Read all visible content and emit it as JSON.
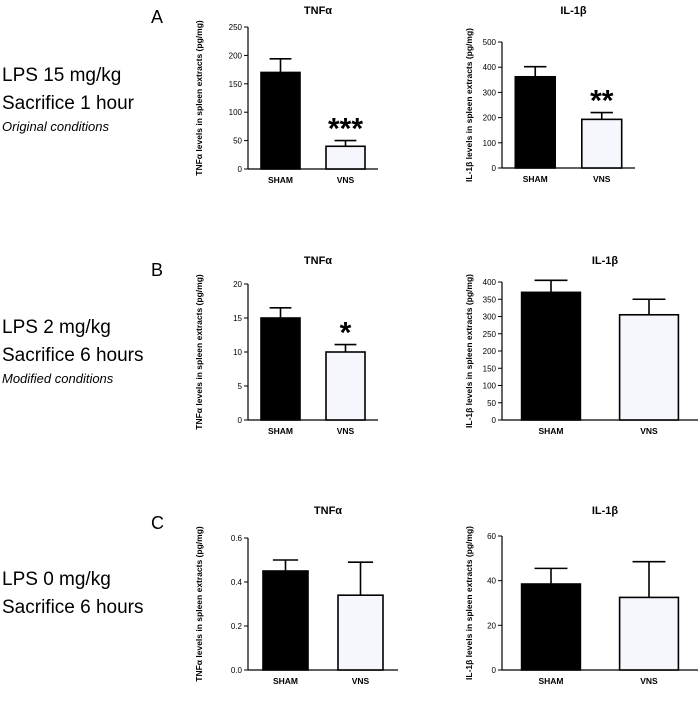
{
  "panels": [
    {
      "letter": "A",
      "condition": {
        "line1": "LPS 15 mg/kg",
        "line2": "Sacrifice 1 hour",
        "note": "Original conditions"
      }
    },
    {
      "letter": "B",
      "condition": {
        "line1": "LPS 2 mg/kg",
        "line2": "Sacrifice 6 hours",
        "note": "Modified conditions"
      }
    },
    {
      "letter": "C",
      "condition": {
        "line1": "LPS 0 mg/kg",
        "line2": "Sacrifice 6 hours",
        "note": ""
      }
    }
  ],
  "chart_data": [
    {
      "type": "bar",
      "title": "TNFα",
      "ylabel": "TNFα levels in spleen extracts (pg/mg)",
      "categories": [
        "SHAM",
        "VNS"
      ],
      "values": [
        170,
        40
      ],
      "errors": [
        24,
        10
      ],
      "ylim": [
        0,
        250
      ],
      "yticks": [
        0,
        50,
        100,
        150,
        200,
        250
      ],
      "colors": [
        "#000000",
        "#f6f6fd"
      ],
      "annotations": [
        "",
        "***"
      ]
    },
    {
      "type": "bar",
      "title": "IL-1β",
      "ylabel": "IL-1β levels in spleen extracts (pg/mg)",
      "categories": [
        "SHAM",
        "VNS"
      ],
      "values": [
        362,
        193
      ],
      "errors": [
        40,
        27
      ],
      "ylim": [
        0,
        500
      ],
      "yticks": [
        0,
        100,
        200,
        300,
        400,
        500
      ],
      "colors": [
        "#000000",
        "#f6f6fd"
      ],
      "annotations": [
        "",
        "**"
      ]
    },
    {
      "type": "bar",
      "title": "TNFα",
      "ylabel": "TNFα levels in spleen extracts (pg/mg)",
      "categories": [
        "SHAM",
        "VNS"
      ],
      "values": [
        15,
        10
      ],
      "errors": [
        1.5,
        1.1
      ],
      "ylim": [
        0,
        20
      ],
      "yticks": [
        0,
        5,
        10,
        15,
        20
      ],
      "colors": [
        "#000000",
        "#f6f6fd"
      ],
      "annotations": [
        "",
        "*"
      ]
    },
    {
      "type": "bar",
      "title": "IL-1β",
      "ylabel": "IL-1β levels in spleen extracts (pg/mg)",
      "categories": [
        "SHAM",
        "VNS"
      ],
      "values": [
        370,
        305
      ],
      "errors": [
        35,
        45
      ],
      "ylim": [
        0,
        400
      ],
      "yticks": [
        0,
        50,
        100,
        150,
        200,
        250,
        300,
        350,
        400
      ],
      "colors": [
        "#000000",
        "#f6f6fd"
      ],
      "annotations": [
        "",
        ""
      ]
    },
    {
      "type": "bar",
      "title": "TNFα",
      "ylabel": "TNFα levels in spleen extracts (pg/mg)",
      "categories": [
        "SHAM",
        "VNS"
      ],
      "values": [
        0.45,
        0.34
      ],
      "errors": [
        0.05,
        0.15
      ],
      "ylim": [
        0,
        0.6
      ],
      "yticks": [
        0.0,
        0.2,
        0.4,
        0.6
      ],
      "tick_decimals": 1,
      "colors": [
        "#000000",
        "#f6f6fd"
      ],
      "annotations": [
        "",
        ""
      ]
    },
    {
      "type": "bar",
      "title": "IL-1β",
      "ylabel": "IL-1β levels in spleen extracts (pg/mg)",
      "categories": [
        "SHAM",
        "VNS"
      ],
      "values": [
        38.5,
        32.5
      ],
      "errors": [
        7,
        16
      ],
      "ylim": [
        0,
        60
      ],
      "yticks": [
        0,
        20,
        40,
        60
      ],
      "colors": [
        "#000000",
        "#f6f6fd"
      ],
      "annotations": [
        "",
        ""
      ]
    }
  ]
}
